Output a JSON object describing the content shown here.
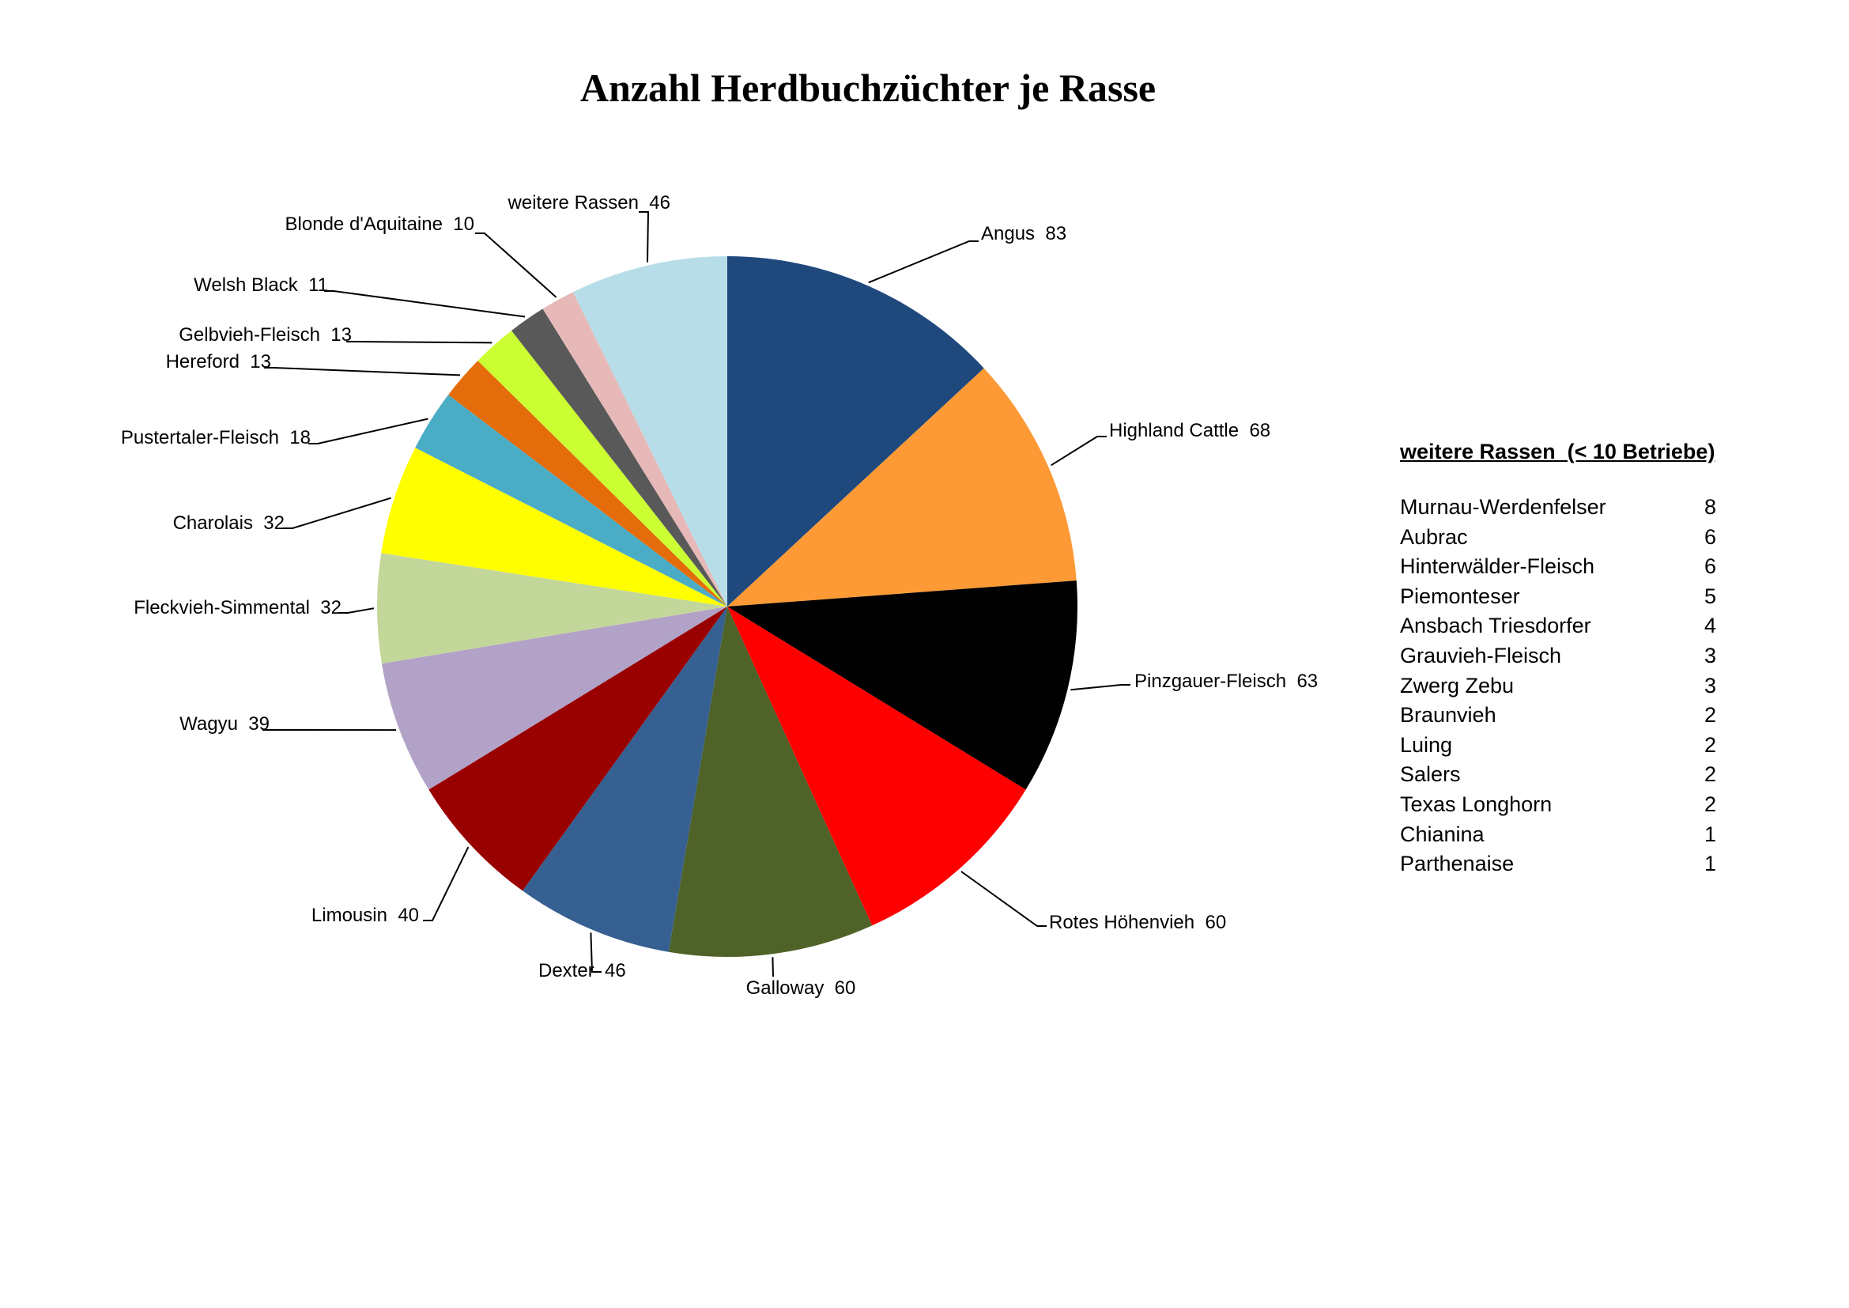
{
  "chart_data": {
    "type": "pie",
    "title": "Anzahl Herdbuchzüchter je Rasse",
    "slices": [
      {
        "label": "Angus",
        "value": 83,
        "color": "#1f497d"
      },
      {
        "label": "Highland Cattle",
        "value": 68,
        "color": "#fd9a36"
      },
      {
        "label": "Pinzgauer-Fleisch",
        "value": 63,
        "color": "#000000"
      },
      {
        "label": "Rotes Höhenvieh",
        "value": 60,
        "color": "#ff0000"
      },
      {
        "label": "Galloway",
        "value": 60,
        "color": "#4f6228"
      },
      {
        "label": "Dexter",
        "value": 46,
        "color": "#366092"
      },
      {
        "label": "Limousin",
        "value": 40,
        "color": "#990000"
      },
      {
        "label": "Wagyu",
        "value": 39,
        "color": "#b2a2c7"
      },
      {
        "label": "Fleckvieh-Simmental",
        "value": 32,
        "color": "#c4d79b"
      },
      {
        "label": "Charolais",
        "value": 32,
        "color": "#ffff00"
      },
      {
        "label": "Pustertaler-Fleisch",
        "value": 18,
        "color": "#4bacc6"
      },
      {
        "label": "Hereford",
        "value": 13,
        "color": "#e46c0a"
      },
      {
        "label": "Gelbvieh-Fleisch",
        "value": 13,
        "color": "#ccff33"
      },
      {
        "label": "Welsh Black",
        "value": 11,
        "color": "#595959"
      },
      {
        "label": "Blonde d'Aquitaine",
        "value": 10,
        "color": "#e6b9b8"
      },
      {
        "label": "weitere Rassen",
        "value": 46,
        "color": "#b7dee8"
      }
    ],
    "others_table": {
      "heading": "weitere Rassen  (< 10 Betriebe)",
      "rows": [
        {
          "label": "Murnau-Werdenfelser",
          "value": 8
        },
        {
          "label": "Aubrac",
          "value": 6
        },
        {
          "label": "Hinterwälder-Fleisch",
          "value": 6
        },
        {
          "label": "Piemonteser",
          "value": 5
        },
        {
          "label": "Ansbach Triesdorfer",
          "value": 4
        },
        {
          "label": "Grauvieh-Fleisch",
          "value": 3
        },
        {
          "label": "Zwerg Zebu",
          "value": 3
        },
        {
          "label": "Braunvieh",
          "value": 2
        },
        {
          "label": "Luing",
          "value": 2
        },
        {
          "label": "Salers",
          "value": 2
        },
        {
          "label": "Texas Longhorn",
          "value": 2
        },
        {
          "label": "Chianina",
          "value": 1
        },
        {
          "label": "Parthenaise",
          "value": 1
        }
      ]
    }
  }
}
